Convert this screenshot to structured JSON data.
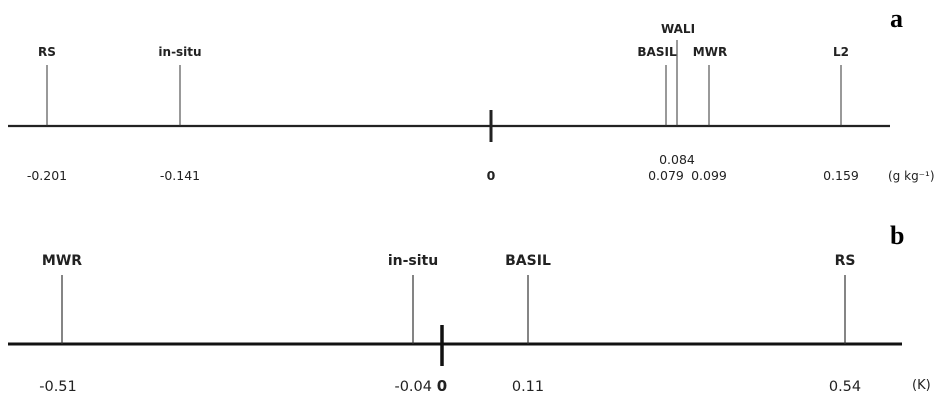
{
  "panels": [
    {
      "letter": "a",
      "unit": "(g kg⁻¹)",
      "zero_label": "0",
      "markers": [
        {
          "name": "RS",
          "value": "-0.201"
        },
        {
          "name": "in-situ",
          "value": "-0.141"
        },
        {
          "name": "BASIL",
          "value": "0.079"
        },
        {
          "name": "WALI",
          "value": "0.084"
        },
        {
          "name": "MWR",
          "value": "0.099"
        },
        {
          "name": "L2",
          "value": "0.159"
        }
      ]
    },
    {
      "letter": "b",
      "unit": "(K)",
      "zero_label": "0",
      "markers": [
        {
          "name": "MWR",
          "value": "-0.51"
        },
        {
          "name": "in-situ",
          "value": "-0.04"
        },
        {
          "name": "BASIL",
          "value": "0.11"
        },
        {
          "name": "RS",
          "value": "0.54"
        }
      ]
    }
  ]
}
